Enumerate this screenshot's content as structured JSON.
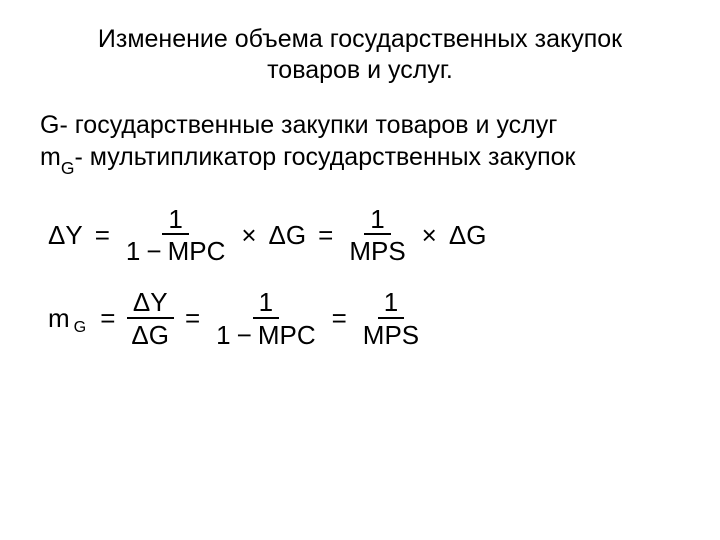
{
  "title_line1": "Изменение объема государственных закупок",
  "title_line2": "товаров и услуг.",
  "def1_sym": "G",
  "def1_text": "- государственные закупки товаров и услуг",
  "def2_sym": "m",
  "def2_sub": "G",
  "def2_text": "- мультипликатор государственных закупок",
  "eq1": {
    "lhs": "ΔY",
    "eq": "=",
    "f1_num": "1",
    "f1_den_a": "1",
    "f1_den_op": "−",
    "f1_den_b": "MPC",
    "times": "×",
    "mid": "ΔG",
    "f2_num": "1",
    "f2_den": "MPS",
    "tail": "ΔG"
  },
  "eq2": {
    "lhs_main": "m",
    "lhs_sub": "G",
    "eq": "=",
    "f1_num": "ΔY",
    "f1_den": "ΔG",
    "f2_num": "1",
    "f2_den_a": "1",
    "f2_den_op": "−",
    "f2_den_b": "MPC",
    "f3_num": "1",
    "f3_den": "MPS"
  }
}
